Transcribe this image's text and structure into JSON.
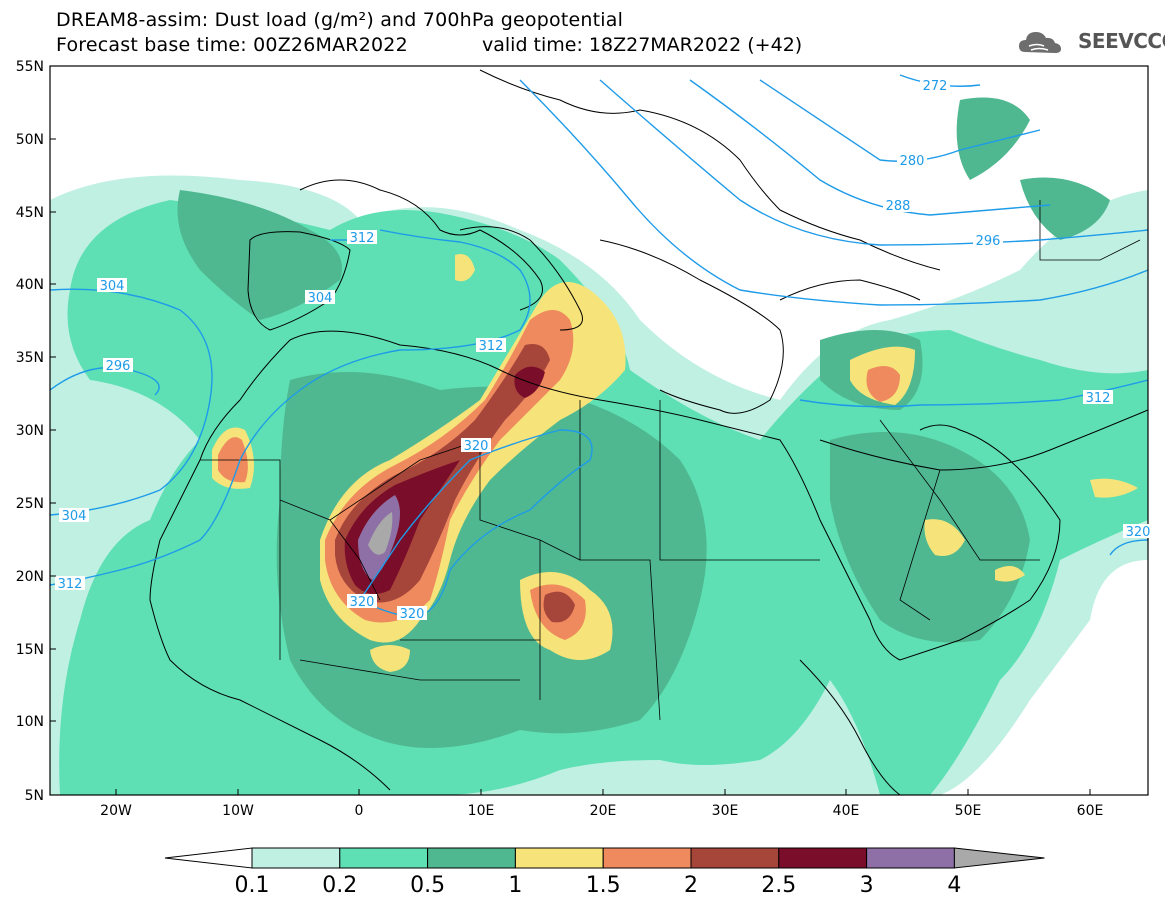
{
  "header": {
    "title_line1": "DREAM8-assim: Dust load (g/m²) and 700hPa geopotential",
    "title_line2": "Forecast base time: 00Z26MAR2022",
    "valid_time": "valid time: 18Z27MAR2022 (+42)",
    "logo_text": "SEEVCCC",
    "logo_icon": "cloud-icon"
  },
  "map": {
    "lat_labels": [
      "55N",
      "50N",
      "45N",
      "40N",
      "35N",
      "30N",
      "25N",
      "20N",
      "15N",
      "10N",
      "5N"
    ],
    "lon_labels": [
      "20W",
      "10W",
      "0",
      "10E",
      "20E",
      "30E",
      "40E",
      "50E",
      "60E"
    ],
    "contour_labels": [
      "272",
      "280",
      "288",
      "296",
      "304",
      "304",
      "296",
      "312",
      "312",
      "312",
      "320",
      "320",
      "320",
      "320",
      "304",
      "312"
    ]
  },
  "colorbar": {
    "labels": [
      "0.1",
      "0.2",
      "0.5",
      "1",
      "1.5",
      "2",
      "2.5",
      "3",
      "4"
    ],
    "colors": [
      "#ffffff",
      "#bff0e2",
      "#5ee0b4",
      "#4fb891",
      "#f6e47a",
      "#ee8a5e",
      "#a6453a",
      "#7a0d29",
      "#8e6fa6",
      "#a9a9a9"
    ]
  },
  "colors": {
    "ocean": "#ffffff",
    "contour": "#1e9be8",
    "border": "#000000"
  }
}
